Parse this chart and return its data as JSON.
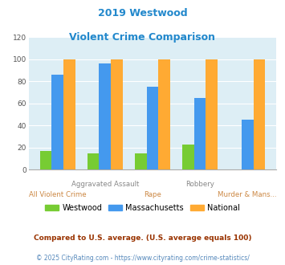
{
  "title_line1": "2019 Westwood",
  "title_line2": "Violent Crime Comparison",
  "title_color": "#2288cc",
  "westwood": [
    17,
    15,
    15,
    23,
    0
  ],
  "massachusetts": [
    86,
    96,
    75,
    65,
    45
  ],
  "national": [
    100,
    100,
    100,
    100,
    100
  ],
  "westwood_color": "#77cc33",
  "massachusetts_color": "#4499ee",
  "national_color": "#ffaa33",
  "plot_bg": "#ddeef5",
  "ylim": [
    0,
    120
  ],
  "yticks": [
    0,
    20,
    40,
    60,
    80,
    100,
    120
  ],
  "top_labels": [
    "",
    "Aggravated Assault",
    "",
    "Robbery",
    ""
  ],
  "bottom_labels": [
    "All Violent Crime",
    "",
    "Rape",
    "",
    "Murder & Mans..."
  ],
  "top_label_color": "#888888",
  "bottom_label_color": "#cc8844",
  "legend_labels": [
    "Westwood",
    "Massachusetts",
    "National"
  ],
  "footnote1": "Compared to U.S. average. (U.S. average equals 100)",
  "footnote2": "© 2025 CityRating.com - https://www.cityrating.com/crime-statistics/",
  "footnote1_color": "#993300",
  "footnote2_color": "#5588bb",
  "bar_width": 0.25,
  "title_fontsize": 9,
  "label_fontsize": 6.2,
  "legend_fontsize": 7,
  "footnote1_fontsize": 6.5,
  "footnote2_fontsize": 5.5
}
